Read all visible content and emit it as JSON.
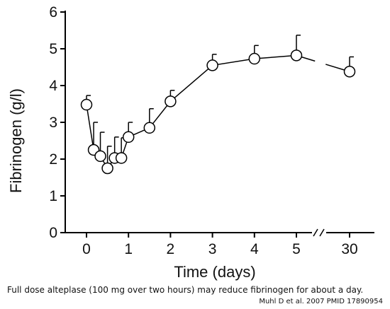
{
  "chart_data": {
    "type": "line",
    "xlabel": "Time (days)",
    "ylabel": "Fibrinogen (g/l)",
    "ylim": [
      0,
      6
    ],
    "yticks": [
      0,
      1,
      2,
      3,
      4,
      5,
      6
    ],
    "xticks": [
      {
        "value": 0,
        "label": "0"
      },
      {
        "value": 1,
        "label": "1"
      },
      {
        "value": 2,
        "label": "2"
      },
      {
        "value": 3,
        "label": "3"
      },
      {
        "value": 4,
        "label": "4"
      },
      {
        "value": 5,
        "label": "5"
      },
      {
        "value": 30,
        "label": "30"
      }
    ],
    "x_axis_break": "between 5 and 30",
    "series": [
      {
        "x": [
          0,
          0.17,
          0.33,
          0.5,
          0.67,
          0.83,
          1,
          1.5,
          2,
          3,
          4,
          5,
          30
        ],
        "y": [
          3.48,
          2.25,
          2.08,
          1.75,
          2.03,
          2.03,
          2.6,
          2.85,
          3.57,
          4.55,
          4.73,
          4.82,
          4.38
        ],
        "error_upper": [
          0.25,
          0.75,
          0.65,
          0.6,
          0.57,
          0.55,
          0.4,
          0.52,
          0.3,
          0.3,
          0.36,
          0.55,
          0.4
        ]
      }
    ],
    "grid": false,
    "legend": false
  },
  "caption": "Full dose alteplase (100 mg over two hours) may reduce fibrinogen for about a day.",
  "citation": "Muhl D et al.  2007  PMID 17890954"
}
